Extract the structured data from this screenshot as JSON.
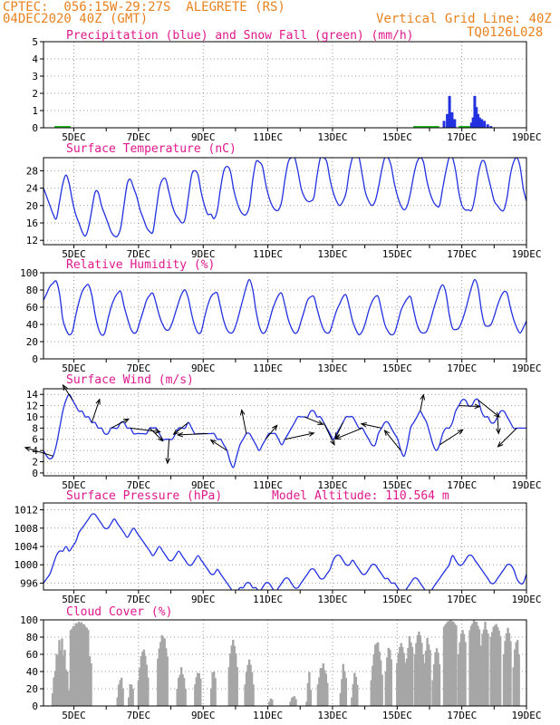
{
  "header": {
    "line1": "CPTEC:  056:15W-29:27S  ALEGRETE (RS)",
    "line2": "04DEC2020 40Z (GMT)",
    "grid_note": "Vertical Grid Line: 40Z",
    "code": "TQ0126L028",
    "color": "#e8821e"
  },
  "colors": {
    "title": "#e0188c",
    "line": "#2231e0",
    "snow": "#22bb22",
    "cloud": "#a6a6a6",
    "grid": "#9a9a9a",
    "dot": "#555555"
  },
  "x_ticks": [
    "5DEC",
    "7DEC",
    "9DEC",
    "11DEC",
    "13DEC",
    "15DEC",
    "17DEC",
    "19DEC"
  ],
  "chart_data": [
    {
      "type": "bar",
      "title": "Precipitation (blue) and Snow Fall (green) (mm/h)",
      "yticks": [
        0,
        1,
        2,
        3,
        4,
        5
      ],
      "ylim": [
        0,
        5
      ],
      "series": [
        {
          "name": "Precipitation",
          "points": [
            [
              16.45,
              0.4
            ],
            [
              16.55,
              0.8
            ],
            [
              16.62,
              1.85
            ],
            [
              16.7,
              0.9
            ],
            [
              16.78,
              0.5
            ],
            [
              17.3,
              0.3
            ],
            [
              17.35,
              0.6
            ],
            [
              17.4,
              1.85
            ],
            [
              17.45,
              1.2
            ],
            [
              17.5,
              0.8
            ],
            [
              17.55,
              0.6
            ],
            [
              17.62,
              0.5
            ],
            [
              17.7,
              0.4
            ],
            [
              17.8,
              0.2
            ],
            [
              17.9,
              0.1
            ]
          ]
        },
        {
          "name": "Snow Fall",
          "points": []
        }
      ]
    },
    {
      "type": "line",
      "title": "Surface Temperature (nC)",
      "yticks": [
        12,
        16,
        20,
        24,
        28
      ],
      "ylim": [
        11,
        31
      ],
      "values_stepped_4h": [
        24,
        22,
        20,
        18,
        17,
        21,
        25,
        27,
        25,
        21,
        18,
        16,
        14,
        13,
        15,
        19,
        23,
        23,
        20,
        18,
        16,
        14,
        13,
        13,
        15,
        20,
        25,
        26,
        24,
        22,
        19,
        17,
        15,
        14,
        14,
        19,
        24,
        26,
        26,
        23,
        20,
        18,
        17,
        16,
        17,
        22,
        27,
        28,
        27,
        23,
        20,
        18,
        18,
        17,
        19,
        24,
        28,
        29,
        28,
        24,
        21,
        19,
        18,
        18,
        20,
        26,
        30,
        30,
        29,
        25,
        22,
        20,
        19,
        19,
        21,
        26,
        30,
        31,
        31,
        28,
        24,
        22,
        21,
        21,
        22,
        27,
        31,
        31,
        30,
        26,
        23,
        21,
        20,
        21,
        23,
        28,
        31,
        31,
        31,
        27,
        23,
        21,
        20,
        21,
        24,
        28,
        31,
        31,
        29,
        25,
        22,
        20,
        19,
        20,
        23,
        27,
        30,
        31,
        30,
        26,
        23,
        21,
        20,
        20,
        24,
        28,
        31,
        31,
        28,
        23,
        20,
        19,
        19,
        19,
        22,
        27,
        30,
        30,
        27,
        24,
        21,
        20,
        19,
        19,
        22,
        27,
        30,
        31,
        29,
        24,
        21
      ]
    },
    {
      "type": "line",
      "title": "Relative Humidity (%)",
      "yticks": [
        0,
        20,
        40,
        60,
        80,
        100
      ],
      "ylim": [
        0,
        100
      ],
      "values_stepped_4h": [
        68,
        76,
        84,
        88,
        90,
        75,
        46,
        34,
        28,
        32,
        50,
        66,
        78,
        84,
        86,
        74,
        52,
        36,
        28,
        30,
        46,
        60,
        70,
        76,
        78,
        62,
        48,
        36,
        30,
        32,
        44,
        56,
        68,
        74,
        76,
        64,
        50,
        40,
        34,
        34,
        42,
        54,
        66,
        76,
        80,
        70,
        52,
        38,
        30,
        32,
        48,
        62,
        72,
        76,
        76,
        60,
        44,
        34,
        30,
        32,
        42,
        56,
        70,
        84,
        92,
        80,
        56,
        38,
        30,
        32,
        42,
        56,
        66,
        74,
        76,
        62,
        46,
        36,
        30,
        32,
        44,
        56,
        68,
        72,
        72,
        58,
        44,
        34,
        30,
        32,
        44,
        56,
        64,
        72,
        74,
        60,
        44,
        34,
        28,
        32,
        42,
        56,
        66,
        72,
        72,
        56,
        40,
        32,
        28,
        30,
        42,
        56,
        64,
        70,
        72,
        56,
        40,
        32,
        30,
        32,
        42,
        56,
        68,
        80,
        86,
        76,
        52,
        36,
        34,
        36,
        44,
        56,
        70,
        84,
        92,
        82,
        56,
        40,
        38,
        40,
        50,
        62,
        72,
        78,
        76,
        60,
        46,
        36,
        30,
        36,
        44
      ]
    },
    {
      "type": "line",
      "title": "Surface Wind (m/s)",
      "yticks": [
        0,
        2,
        4,
        6,
        8,
        10,
        12,
        14
      ],
      "ylim": [
        -0.5,
        15
      ],
      "values_stepped_4h": [
        4,
        3,
        2.5,
        3,
        5,
        8,
        11,
        13,
        14,
        13,
        12,
        11,
        11,
        10,
        10,
        9,
        9,
        8,
        8,
        7,
        7,
        8,
        8,
        8,
        9,
        9,
        8,
        8,
        7,
        7,
        7,
        7,
        7,
        8,
        8,
        8,
        7,
        6,
        6,
        6,
        6,
        7,
        8,
        8,
        8,
        9,
        8,
        7,
        7,
        7,
        7,
        7,
        7,
        7,
        6,
        6,
        5,
        4,
        2,
        1,
        3,
        5,
        6,
        7,
        7,
        6,
        5,
        4,
        5,
        6,
        7,
        7,
        7,
        6,
        5,
        6,
        7,
        8,
        9,
        10,
        10,
        10,
        10,
        11,
        11,
        10,
        10,
        9,
        8,
        7,
        6,
        7,
        8,
        9,
        10,
        10,
        10,
        9,
        8,
        8,
        7,
        6,
        5,
        5,
        7,
        8,
        9,
        9,
        8,
        7,
        6,
        4,
        3,
        5,
        8,
        9,
        10,
        11,
        10,
        9,
        7,
        5,
        4,
        5,
        7,
        8,
        8,
        9,
        11,
        12,
        13,
        13,
        12,
        12,
        13,
        13,
        11,
        10,
        10,
        9,
        9,
        10,
        11,
        11,
        10,
        9,
        8,
        8,
        8,
        8,
        8
      ]
    },
    {
      "type": "line",
      "title": "Surface Pressure (hPa)",
      "annotation": "Model Altitude: 110.564  m",
      "yticks": [
        996,
        1000,
        1004,
        1008,
        1012
      ],
      "ylim": [
        994.5,
        1013.5
      ],
      "values_stepped_4h": [
        996,
        997,
        998,
        1000,
        1002,
        1003,
        1003,
        1004,
        1003,
        1004,
        1005,
        1007,
        1008,
        1009,
        1010,
        1011,
        1011,
        1010,
        1009,
        1008,
        1008,
        1009,
        1010,
        1009,
        1008,
        1007,
        1006,
        1007,
        1008,
        1007,
        1006,
        1005,
        1004,
        1003,
        1002,
        1003,
        1004,
        1003,
        1002,
        1001,
        1001,
        1002,
        1003,
        1002,
        1001,
        1000,
        1000,
        1001,
        1002,
        1001,
        1000,
        999,
        998,
        998,
        999,
        998,
        997,
        996,
        995,
        994,
        994,
        995,
        995,
        996,
        996,
        995,
        995,
        994,
        995,
        996,
        996,
        995,
        994,
        995,
        996,
        997,
        997,
        996,
        995,
        995,
        996,
        997,
        998,
        999,
        999,
        998,
        997,
        997,
        998,
        999,
        1001,
        1002,
        1002,
        1001,
        1000,
        1000,
        1001,
        1000,
        999,
        998,
        998,
        999,
        1000,
        1000,
        999,
        998,
        997,
        997,
        996,
        996,
        995,
        994,
        994,
        995,
        996,
        997,
        997,
        996,
        995,
        994,
        994,
        995,
        996,
        997,
        998,
        999,
        1000,
        1002,
        1001,
        1000,
        1000,
        1001,
        1002,
        1002,
        1001,
        1000,
        999,
        998,
        997,
        996,
        996,
        997,
        998,
        999,
        1000,
        1000,
        999,
        997,
        996,
        996,
        998
      ]
    },
    {
      "type": "bar",
      "title": "Cloud Cover (%)",
      "yticks": [
        0,
        20,
        40,
        60,
        80,
        100
      ],
      "ylim": [
        0,
        100
      ],
      "series": [
        {
          "name": "Cloud Cover",
          "segments": [
            [
              4.3,
              4.9,
              0,
              80
            ],
            [
              4.9,
              5.45,
              88,
              98
            ],
            [
              5.45,
              5.55,
              40,
              60
            ],
            [
              6.35,
              6.55,
              10,
              35
            ],
            [
              6.7,
              6.85,
              10,
              30
            ],
            [
              7.0,
              7.3,
              30,
              68
            ],
            [
              7.6,
              7.9,
              55,
              84
            ],
            [
              8.2,
              8.45,
              20,
              45
            ],
            [
              8.75,
              8.95,
              25,
              40
            ],
            [
              9.25,
              9.4,
              20,
              45
            ],
            [
              9.8,
              10.05,
              45,
              78
            ],
            [
              10.3,
              10.55,
              25,
              55
            ],
            [
              11.05,
              11.15,
              5,
              10
            ],
            [
              11.7,
              11.9,
              5,
              12
            ],
            [
              12.2,
              12.35,
              5,
              40
            ],
            [
              12.55,
              12.85,
              25,
              50
            ],
            [
              13.25,
              13.45,
              15,
              50
            ],
            [
              13.6,
              13.8,
              10,
              40
            ],
            [
              14.2,
              14.55,
              30,
              78
            ],
            [
              14.65,
              14.85,
              40,
              70
            ],
            [
              15.0,
              15.25,
              50,
              74
            ],
            [
              15.3,
              15.5,
              55,
              82
            ],
            [
              15.55,
              15.8,
              60,
              88
            ],
            [
              15.85,
              16.05,
              50,
              80
            ],
            [
              16.1,
              16.35,
              30,
              70
            ],
            [
              16.45,
              16.85,
              92,
              100
            ],
            [
              16.9,
              17.15,
              60,
              90
            ],
            [
              17.25,
              17.55,
              88,
              100
            ],
            [
              17.6,
              17.85,
              70,
              98
            ],
            [
              17.9,
              18.2,
              80,
              96
            ],
            [
              18.3,
              18.55,
              60,
              92
            ],
            [
              18.6,
              18.8,
              45,
              80
            ]
          ]
        }
      ]
    }
  ]
}
